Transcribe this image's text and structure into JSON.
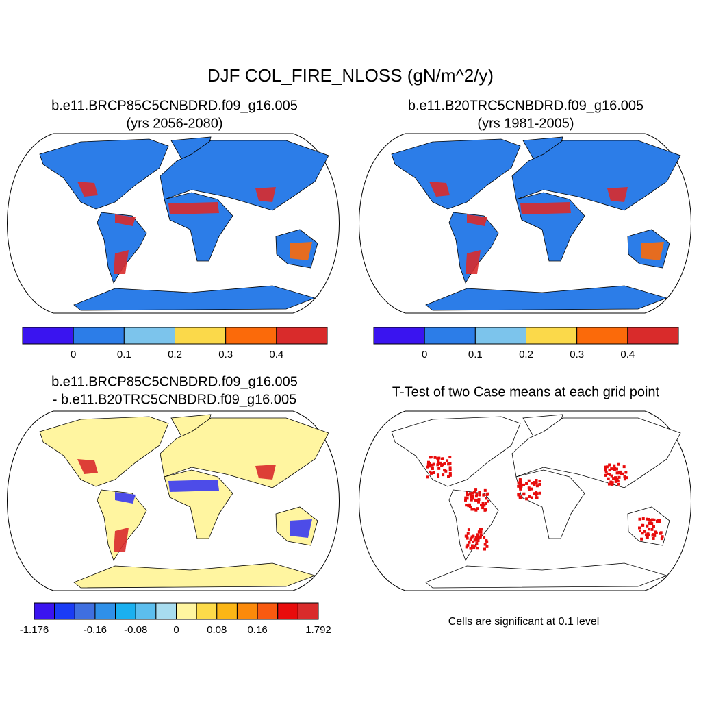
{
  "title": "DJF COL_FIRE_NLOSS (gN/m^2/y)",
  "panels": [
    {
      "title_lines": [
        "b.e11.BRCP85C5CNBDRD.f09_g16.005",
        "(yrs 2056-2080)"
      ],
      "colorbar": {
        "colors": [
          "#3a14f0",
          "#2c7de8",
          "#7cc4ec",
          "#fbd94a",
          "#fb6a0a",
          "#d92b2b"
        ],
        "labels": [
          null,
          0,
          0.1,
          0.2,
          0.3,
          0.4,
          null
        ]
      }
    },
    {
      "title_lines": [
        "b.e11.B20TRC5CNBDRD.f09_g16.005",
        "(yrs 1981-2005)"
      ],
      "colorbar": {
        "colors": [
          "#3a14f0",
          "#2c7de8",
          "#7cc4ec",
          "#fbd94a",
          "#fb6a0a",
          "#d92b2b"
        ],
        "labels": [
          null,
          0,
          0.1,
          0.2,
          0.3,
          0.4,
          null
        ]
      }
    },
    {
      "title_lines": [
        "b.e11.BRCP85C5CNBDRD.f09_g16.005",
        "- b.e11.B20TRC5CNBDRD.f09_g16.005"
      ],
      "colorbar": {
        "colors": [
          "#3a14f0",
          "#1a3cf5",
          "#3f6fe0",
          "#2f90e8",
          "#1ab0f0",
          "#5cbeee",
          "#a8dcef",
          "#fff5a0",
          "#fddb4a",
          "#fbb616",
          "#fb8a0a",
          "#f85a10",
          "#e80c0c",
          "#d92b2b"
        ],
        "labels": [
          -1.176,
          null,
          null,
          -0.16,
          null,
          -0.08,
          null,
          0,
          null,
          0.08,
          null,
          0.16,
          null,
          null,
          1.792
        ]
      }
    },
    {
      "title_lines": [
        "T-Test of two Case means at each grid point"
      ],
      "note": "Cells are significant at 0.1 level"
    }
  ]
}
